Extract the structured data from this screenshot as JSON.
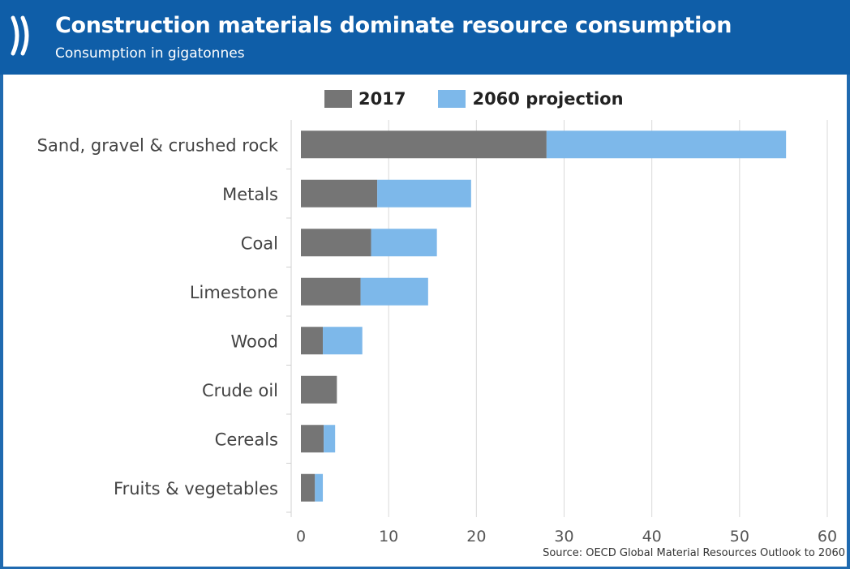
{
  "header": {
    "title": "Construction materials dominate resource consumption",
    "subtitle": "Consumption in gigatonnes"
  },
  "source": "Source: OECD Global Material Resources Outlook to 2060",
  "colors": {
    "header_bg": "#0f5ea8",
    "series_2017": "#757575",
    "series_2060": "#7db8ea",
    "gridline": "#d9d9d9"
  },
  "chart_data": {
    "type": "bar",
    "orientation": "horizontal",
    "stacked": true,
    "categories": [
      "Sand, gravel & crushed rock",
      "Metals",
      "Coal",
      "Limestone",
      "Wood",
      "Crude oil",
      "Cereals",
      "Fruits & vegetables"
    ],
    "series": [
      {
        "name": "2017",
        "values": [
          28,
          8.7,
          8,
          6.8,
          2.5,
          4.1,
          2.6,
          1.6
        ]
      },
      {
        "name": "2060 projection",
        "values": [
          27.3,
          10.7,
          7.5,
          7.7,
          4.5,
          0,
          1.3,
          0.9
        ]
      }
    ],
    "xlim": [
      0,
      60
    ],
    "xticks": [
      0,
      10,
      20,
      30,
      40,
      50,
      60
    ],
    "xlabel": "",
    "ylabel": "",
    "grid": true,
    "legend_position": "top"
  }
}
